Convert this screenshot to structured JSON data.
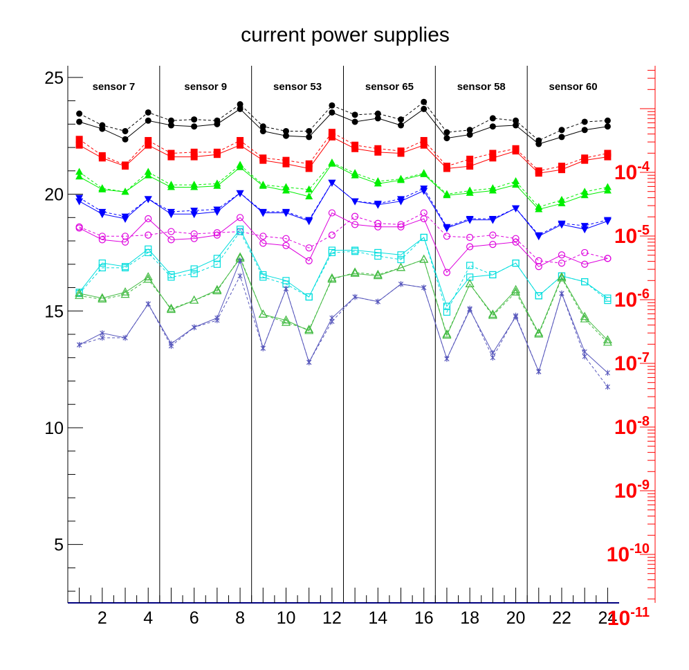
{
  "chart_data": {
    "type": "line",
    "title": "current power supplies",
    "xlabel": "",
    "ylabel": "",
    "xlim": [
      0.5,
      24.5
    ],
    "ylim": [
      2.5,
      25.5
    ],
    "x_ticks": [
      2,
      4,
      6,
      8,
      10,
      12,
      14,
      16,
      18,
      20,
      22,
      24
    ],
    "y_ticks": [
      5,
      10,
      15,
      20,
      25
    ],
    "right_axis": {
      "scale": "log",
      "color": "#ff0000",
      "tick_labels": [
        {
          "base": "10",
          "exp": "-4"
        },
        {
          "base": "10",
          "exp": "-5"
        },
        {
          "base": "10",
          "exp": "-6"
        },
        {
          "base": "10",
          "exp": "-7"
        },
        {
          "base": "10",
          "exp": "-8"
        },
        {
          "base": "10",
          "exp": "-9"
        },
        {
          "base": "10",
          "exp": "-10"
        },
        {
          "base": "10",
          "exp": "-11"
        }
      ]
    },
    "sections": [
      {
        "label": "sensor 7",
        "x_from": 0.5,
        "x_to": 4.5
      },
      {
        "label": "sensor 9",
        "x_from": 4.5,
        "x_to": 8.5
      },
      {
        "label": "sensor 53",
        "x_from": 8.5,
        "x_to": 12.5
      },
      {
        "label": "sensor 65",
        "x_from": 12.5,
        "x_to": 16.5
      },
      {
        "label": "sensor 58",
        "x_from": 16.5,
        "x_to": 20.5
      },
      {
        "label": "sensor 60",
        "x_from": 20.5,
        "x_to": 24.5
      }
    ],
    "x": [
      1,
      2,
      3,
      4,
      5,
      6,
      7,
      8,
      9,
      10,
      11,
      12,
      13,
      14,
      15,
      16,
      17,
      18,
      19,
      20,
      21,
      22,
      23,
      24
    ],
    "series": [
      {
        "color": "#000000",
        "marker": "circle-filled",
        "line": "solid",
        "values": [
          23.1,
          22.8,
          22.35,
          23.15,
          22.95,
          22.9,
          23.0,
          23.65,
          22.7,
          22.5,
          22.45,
          23.5,
          23.1,
          23.25,
          22.95,
          23.65,
          22.4,
          22.55,
          22.9,
          22.95,
          22.15,
          22.45,
          22.75,
          22.9
        ]
      },
      {
        "color": "#000000",
        "marker": "circle-filled",
        "line": "dashed",
        "values": [
          23.45,
          22.95,
          22.7,
          23.5,
          23.15,
          23.2,
          23.15,
          23.85,
          22.9,
          22.7,
          22.7,
          23.8,
          23.4,
          23.45,
          23.2,
          23.95,
          22.65,
          22.75,
          23.25,
          23.15,
          22.3,
          22.75,
          23.1,
          23.15
        ]
      },
      {
        "color": "#ff0000",
        "marker": "square-filled",
        "line": "solid",
        "values": [
          22.1,
          21.55,
          21.2,
          22.1,
          21.6,
          21.6,
          21.7,
          22.1,
          21.45,
          21.3,
          21.1,
          22.45,
          21.95,
          21.8,
          21.75,
          22.1,
          21.1,
          21.2,
          21.55,
          21.85,
          20.9,
          21.05,
          21.45,
          21.6
        ]
      },
      {
        "color": "#ff0000",
        "marker": "square-filled",
        "line": "dashed",
        "values": [
          22.35,
          21.65,
          21.25,
          22.3,
          21.75,
          21.8,
          21.8,
          22.3,
          21.55,
          21.45,
          21.3,
          22.65,
          22.1,
          21.95,
          21.85,
          22.3,
          21.2,
          21.5,
          21.75,
          21.95,
          21.0,
          21.2,
          21.55,
          21.75
        ]
      },
      {
        "color": "#00ee00",
        "marker": "triangle-up-filled",
        "line": "solid",
        "values": [
          20.75,
          20.2,
          20.1,
          20.8,
          20.3,
          20.3,
          20.35,
          21.15,
          20.35,
          20.15,
          19.9,
          21.3,
          20.8,
          20.45,
          20.6,
          20.85,
          19.95,
          20.05,
          20.15,
          20.4,
          19.35,
          19.6,
          19.95,
          20.15
        ]
      },
      {
        "color": "#00ee00",
        "marker": "triangle-up-filled",
        "line": "dashed",
        "values": [
          20.95,
          20.25,
          20.1,
          20.95,
          20.4,
          20.4,
          20.45,
          21.25,
          20.4,
          20.3,
          20.2,
          21.35,
          20.9,
          20.55,
          20.65,
          20.9,
          20.0,
          20.15,
          20.25,
          20.55,
          19.45,
          19.75,
          20.1,
          20.3
        ]
      },
      {
        "color": "#0000ff",
        "marker": "triangle-down-filled",
        "line": "solid",
        "values": [
          19.7,
          19.15,
          18.95,
          19.8,
          19.15,
          19.15,
          19.25,
          20.05,
          19.2,
          19.2,
          18.85,
          20.5,
          19.7,
          19.55,
          19.7,
          20.15,
          18.55,
          18.9,
          18.9,
          19.4,
          18.2,
          18.7,
          18.5,
          18.85
        ]
      },
      {
        "color": "#0000ff",
        "marker": "triangle-down-filled",
        "line": "dashed",
        "values": [
          19.85,
          19.25,
          19.05,
          19.8,
          19.25,
          19.3,
          19.35,
          20.05,
          19.25,
          19.25,
          18.9,
          20.5,
          19.7,
          19.6,
          19.8,
          20.25,
          18.6,
          18.95,
          18.95,
          19.4,
          18.25,
          18.75,
          18.65,
          18.9
        ]
      },
      {
        "color": "#dd00dd",
        "marker": "circle-open",
        "line": "solid",
        "values": [
          18.55,
          18.05,
          17.95,
          18.95,
          18.05,
          18.1,
          18.25,
          19.0,
          17.9,
          17.8,
          17.15,
          19.2,
          18.7,
          18.6,
          18.6,
          18.95,
          16.65,
          17.75,
          17.85,
          17.95,
          16.9,
          17.4,
          17.0,
          17.25
        ]
      },
      {
        "color": "#dd00dd",
        "marker": "circle-open",
        "line": "dashed",
        "values": [
          18.6,
          18.2,
          18.2,
          18.25,
          18.4,
          18.3,
          18.35,
          18.4,
          18.2,
          18.1,
          17.7,
          18.25,
          19.05,
          18.75,
          18.7,
          19.2,
          18.2,
          18.15,
          18.25,
          18.1,
          17.15,
          17.05,
          17.5,
          17.25
        ]
      },
      {
        "color": "#00dddd",
        "marker": "square-open",
        "line": "solid",
        "values": [
          15.8,
          17.05,
          16.9,
          17.65,
          16.55,
          16.8,
          17.25,
          18.5,
          16.55,
          16.3,
          15.6,
          17.6,
          17.6,
          17.5,
          17.4,
          18.15,
          15.2,
          16.45,
          16.55,
          17.05,
          15.65,
          16.5,
          16.25,
          15.55
        ]
      },
      {
        "color": "#00dddd",
        "marker": "square-open",
        "line": "dashed",
        "values": [
          15.75,
          16.85,
          16.85,
          17.5,
          16.45,
          16.6,
          17.0,
          18.4,
          16.45,
          16.15,
          15.6,
          17.5,
          17.55,
          17.35,
          17.2,
          18.15,
          14.95,
          16.95,
          16.55,
          17.05,
          15.65,
          16.5,
          16.25,
          15.45
        ]
      },
      {
        "color": "#44bb44",
        "marker": "triangle-up-open",
        "line": "solid",
        "values": [
          15.75,
          15.55,
          15.8,
          16.45,
          15.05,
          15.45,
          15.9,
          17.25,
          14.85,
          14.6,
          14.15,
          16.4,
          16.6,
          16.5,
          16.85,
          17.2,
          13.95,
          16.15,
          14.85,
          15.9,
          14.05,
          16.45,
          14.75,
          13.75
        ]
      },
      {
        "color": "#44bb44",
        "marker": "triangle-up-open",
        "line": "dashed",
        "values": [
          15.65,
          15.5,
          15.7,
          16.35,
          15.1,
          15.45,
          15.85,
          17.3,
          14.85,
          14.5,
          14.2,
          16.35,
          16.65,
          16.55,
          16.85,
          17.2,
          14.0,
          16.15,
          14.8,
          15.8,
          14.0,
          16.4,
          14.65,
          13.65
        ]
      },
      {
        "color": "#5555bb",
        "marker": "star",
        "line": "solid",
        "values": [
          13.55,
          14.05,
          13.85,
          15.3,
          13.6,
          14.3,
          14.7,
          17.15,
          13.4,
          15.95,
          12.8,
          14.7,
          15.6,
          15.4,
          16.15,
          16.0,
          12.95,
          15.05,
          13.2,
          14.75,
          12.4,
          15.75,
          13.25,
          12.35
        ]
      },
      {
        "color": "#5555bb",
        "marker": "star",
        "line": "dashed",
        "values": [
          13.55,
          13.85,
          13.85,
          15.3,
          13.5,
          14.3,
          14.6,
          16.5,
          13.4,
          15.95,
          12.8,
          14.55,
          15.6,
          15.4,
          16.15,
          16.0,
          12.95,
          15.1,
          13.0,
          14.8,
          12.4,
          15.75,
          13.05,
          11.75
        ]
      }
    ]
  }
}
